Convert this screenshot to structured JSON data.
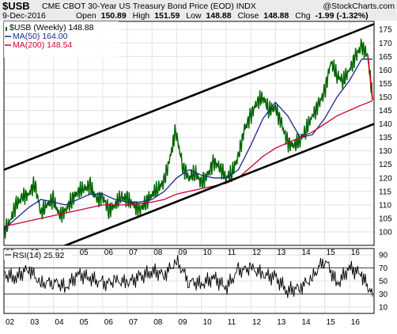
{
  "chart_data": {
    "type": "line",
    "symbol": "$USB",
    "title": "CME CBOT 30-Year US Treasury Bond Price (EOD) INDX",
    "watermark": "@StockCharts.com",
    "date": "9-Dec-2016",
    "quote": {
      "open_label": "Open",
      "open": "150.89",
      "high_label": "High",
      "high": "151.59",
      "low_label": "Low",
      "low": "148.88",
      "close_label": "Close",
      "close": "148.88",
      "chg_label": "Chg",
      "chg": "-1.99 (-1.32%)"
    },
    "legend": {
      "price": "$USB (Weekly) 148.88",
      "ma50": "MA(50) 164.00",
      "ma200": "MA(200) 148.54",
      "rsi": "RSI(14) 25.92"
    },
    "x_ticks": [
      "02",
      "03",
      "04",
      "05",
      "06",
      "07",
      "08",
      "09",
      "10",
      "11",
      "12",
      "13",
      "14",
      "15",
      "16"
    ],
    "y_ticks": [
      100,
      105,
      110,
      115,
      120,
      125,
      130,
      135,
      140,
      145,
      150,
      155,
      160,
      165,
      170,
      175
    ],
    "ylim": [
      95,
      178
    ],
    "xlim": [
      2002.0,
      2017.0
    ],
    "rsi_ticks": [
      10,
      30,
      50,
      70,
      90
    ],
    "rsi_ylim": [
      0,
      100
    ],
    "colors": {
      "price": "#006400",
      "price_down": "#cc0000",
      "ma50": "#1a2a8a",
      "ma200": "#cc0033",
      "channel": "#000000",
      "rsi": "#000000",
      "header_bg": "#ebebeb"
    },
    "channel_lines": [
      {
        "name": "upper",
        "x": [
          2002.0,
          2017.0
        ],
        "y": [
          123.0,
          177.0
        ]
      },
      {
        "name": "lower",
        "x": [
          2002.0,
          2017.0
        ],
        "y": [
          86.0,
          140.0
        ]
      }
    ],
    "series": [
      {
        "name": "$USB (Weekly)",
        "x": [
          2002.0,
          2002.25,
          2002.5,
          2002.75,
          2003.0,
          2003.25,
          2003.5,
          2003.75,
          2004.0,
          2004.25,
          2004.5,
          2004.75,
          2005.0,
          2005.25,
          2005.5,
          2005.75,
          2006.0,
          2006.25,
          2006.5,
          2006.75,
          2007.0,
          2007.25,
          2007.5,
          2007.75,
          2008.0,
          2008.25,
          2008.5,
          2008.75,
          2008.95,
          2009.25,
          2009.5,
          2009.75,
          2010.0,
          2010.25,
          2010.5,
          2010.75,
          2011.0,
          2011.25,
          2011.5,
          2011.75,
          2012.0,
          2012.25,
          2012.5,
          2012.75,
          2013.0,
          2013.25,
          2013.5,
          2013.75,
          2014.0,
          2014.25,
          2014.5,
          2014.75,
          2015.0,
          2015.25,
          2015.5,
          2015.75,
          2016.0,
          2016.25,
          2016.5,
          2016.75,
          2016.94
        ],
        "y": [
          100,
          104,
          110,
          113,
          114,
          118,
          107,
          110,
          112,
          106,
          108,
          112,
          115,
          116,
          117,
          112,
          113,
          108,
          110,
          113,
          112,
          110,
          108,
          111,
          114,
          116,
          119,
          128,
          138,
          124,
          120,
          122,
          118,
          121,
          126,
          124,
          120,
          122,
          128,
          138,
          143,
          148,
          150,
          145,
          146,
          140,
          133,
          132,
          134,
          138,
          143,
          147,
          152,
          163,
          158,
          156,
          160,
          165,
          169,
          165,
          148.88
        ]
      },
      {
        "name": "MA(50)",
        "x": [
          2002.0,
          2002.5,
          2003.0,
          2003.5,
          2004.0,
          2004.5,
          2005.0,
          2005.5,
          2006.0,
          2006.5,
          2007.0,
          2007.5,
          2008.0,
          2008.5,
          2009.0,
          2009.5,
          2010.0,
          2010.5,
          2011.0,
          2011.5,
          2012.0,
          2012.5,
          2013.0,
          2013.5,
          2014.0,
          2014.5,
          2015.0,
          2015.5,
          2016.0,
          2016.5,
          2016.94
        ],
        "y": [
          101,
          105,
          109,
          112,
          111,
          110,
          112,
          114,
          114,
          112,
          111,
          111,
          112,
          115,
          120,
          123,
          121,
          120,
          120,
          123,
          132,
          142,
          148,
          143,
          135,
          136,
          142,
          150,
          156,
          164,
          164
        ]
      },
      {
        "name": "MA(200)",
        "x": [
          2002.0,
          2002.5,
          2003.0,
          2003.5,
          2004.0,
          2004.5,
          2005.0,
          2005.5,
          2006.0,
          2006.5,
          2007.0,
          2007.5,
          2008.0,
          2008.5,
          2009.0,
          2009.5,
          2010.0,
          2010.5,
          2011.0,
          2011.5,
          2012.0,
          2012.5,
          2013.0,
          2013.5,
          2014.0,
          2014.5,
          2015.0,
          2015.5,
          2016.0,
          2016.5,
          2016.94
        ],
        "y": [
          102,
          103,
          104,
          105,
          106,
          107,
          108,
          109,
          110,
          110,
          110,
          110.5,
          111,
          112,
          114,
          115,
          116,
          117,
          118,
          120,
          124,
          128,
          131,
          133,
          135,
          137,
          140,
          143,
          145,
          147,
          148.54
        ]
      },
      {
        "name": "RSI(14)",
        "x": [
          2002.0,
          2002.5,
          2003.0,
          2003.5,
          2004.0,
          2004.5,
          2005.0,
          2005.5,
          2006.0,
          2006.5,
          2007.0,
          2007.5,
          2008.0,
          2008.5,
          2009.0,
          2009.5,
          2010.0,
          2010.5,
          2011.0,
          2011.5,
          2012.0,
          2012.5,
          2013.0,
          2013.5,
          2014.0,
          2014.5,
          2015.0,
          2015.5,
          2016.0,
          2016.5,
          2016.94
        ],
        "y": [
          60,
          55,
          70,
          45,
          50,
          40,
          60,
          55,
          45,
          50,
          48,
          55,
          65,
          60,
          80,
          50,
          45,
          55,
          40,
          65,
          70,
          60,
          55,
          35,
          40,
          55,
          85,
          45,
          70,
          60,
          25.92
        ]
      }
    ]
  }
}
